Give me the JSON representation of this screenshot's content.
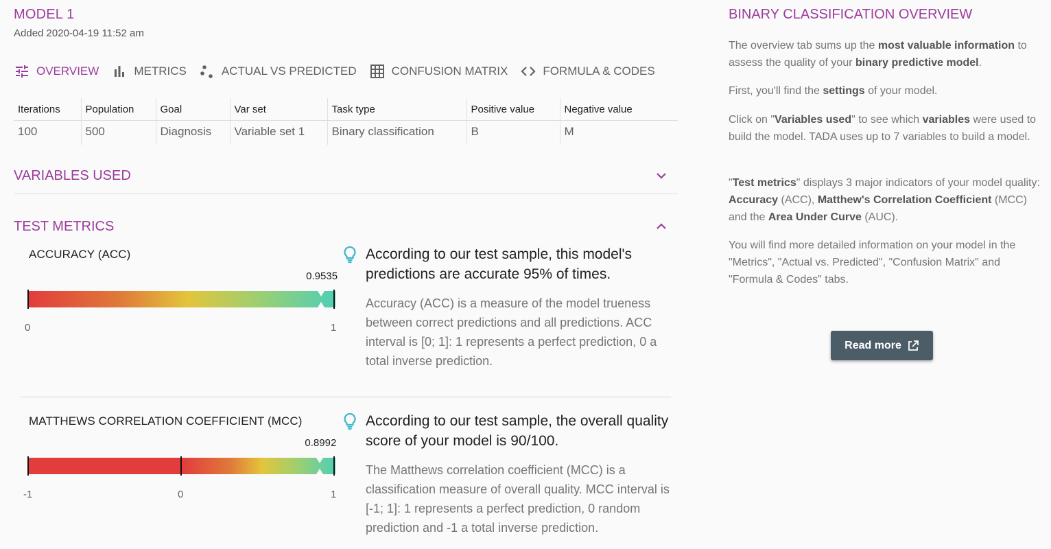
{
  "model": {
    "title": "MODEL 1",
    "added": "Added 2020-04-19 11:52 am"
  },
  "tabs": [
    {
      "label": "OVERVIEW",
      "icon": "tune-icon",
      "active": true
    },
    {
      "label": "METRICS",
      "icon": "bar-chart-icon",
      "active": false
    },
    {
      "label": "ACTUAL VS PREDICTED",
      "icon": "scatter-icon",
      "active": false
    },
    {
      "label": "CONFUSION MATRIX",
      "icon": "grid-icon",
      "active": false
    },
    {
      "label": "FORMULA & CODES",
      "icon": "code-icon",
      "active": false
    }
  ],
  "settings": {
    "headers": [
      "Iterations",
      "Population",
      "Goal",
      "Var set",
      "Task type",
      "Positive value",
      "Negative value"
    ],
    "values": [
      "100",
      "500",
      "Diagnosis",
      "Variable set 1",
      "Binary classification",
      "B",
      "M"
    ]
  },
  "variables_used": {
    "title": "VARIABLES USED",
    "expanded": false
  },
  "test_metrics": {
    "title": "TEST METRICS",
    "expanded": true,
    "accuracy": {
      "name": "ACCURACY (ACC)",
      "value": 0.9535,
      "value_label": "0.9535",
      "min_label": "0",
      "max_label": "1",
      "headline": "According to our test sample, this model's predictions are accurate 95% of times.",
      "description": "Accuracy (ACC) is a measure of the model trueness between correct predictions and all predictions. ACC interval is [0; 1]: 1 represents a perfect prediction, 0 a total inverse prediction."
    },
    "mcc": {
      "name": "MATTHEWS CORRELATION COEFFICIENT (MCC)",
      "value": 0.8992,
      "value_label": "0.8992",
      "min_label": "-1",
      "mid_label": "0",
      "max_label": "1",
      "headline": "According to our test sample, the overall quality score of your model is 90/100.",
      "description": "The Matthews correlation coefficient (MCC) is a classification measure of overall quality. MCC interval is [-1; 1]: 1 represents a perfect prediction, 0 random prediction and -1 a total inverse prediction."
    }
  },
  "overview_panel": {
    "title": "BINARY CLASSIFICATION OVERVIEW",
    "p1": {
      "a": "The overview tab sums up the ",
      "b1": "most valuable information",
      "c": " to assess the quality of your ",
      "b2": "binary predictive model",
      "d": "."
    },
    "p2": {
      "a": "First, you'll find the ",
      "b1": "settings",
      "c": " of your model."
    },
    "p3": {
      "a": "Click on \"",
      "b1": "Variables used",
      "c": "\" to see which ",
      "b2": "variables",
      "d": " were used to build the model. TADA uses up to 7 variables to build a model."
    },
    "p4": {
      "a": "\"",
      "b1": "Test metrics",
      "c": "\" displays 3 major indicators of your model quality: ",
      "b2": "Accuracy",
      "d": " (ACC), ",
      "b3": "Matthew's Correlation Coefficient",
      "e": " (MCC) and the ",
      "b4": "Area Under Curve",
      "f": " (AUC)."
    },
    "p5": "You will find more detailed information on your model in the \"Metrics\", \"Actual vs. Predicted\", \"Confusion Matrix\" and \"Formula & Codes\" tabs.",
    "read_more_label": "Read more"
  },
  "colors": {
    "accent": "#9c3c9c",
    "bulb": "#3bb8c9",
    "button": "#4d5d68",
    "gauge_red": "#e23c3c",
    "gauge_orange": "#e07a3a",
    "gauge_yellow": "#e3c53a",
    "gauge_teal": "#4fcfb4"
  }
}
